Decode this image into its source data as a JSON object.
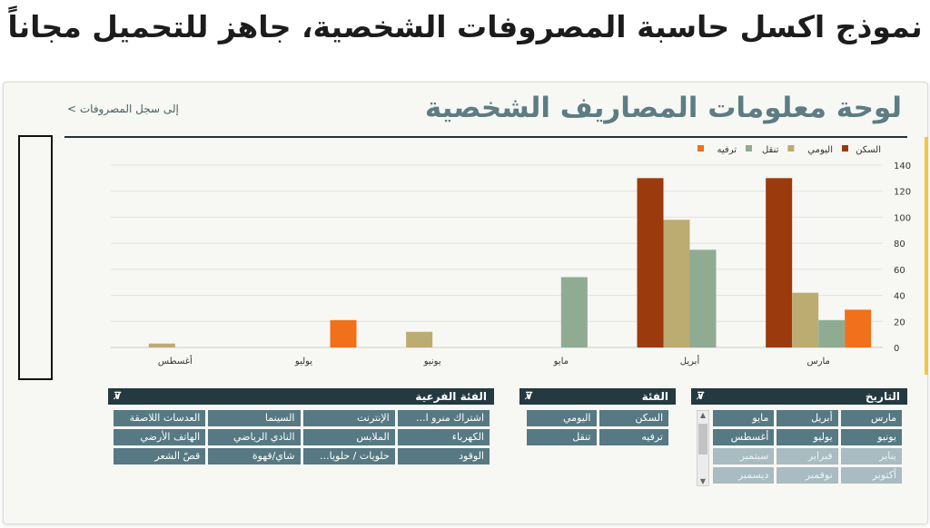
{
  "page_title": "نموذج اكسل حاسبة المصروفات الشخصية، جاهز للتحميل مجاناً",
  "sheet": {
    "title": "لوحة معلومات المصاريف الشخصية",
    "back_link": "إلى سجل المصروفات >"
  },
  "chart_data": {
    "type": "bar",
    "categories": [
      "مارس",
      "أبريل",
      "مايو",
      "يونيو",
      "يوليو",
      "أغسطس"
    ],
    "series": [
      {
        "name": "السكن",
        "color": "#9b3a0c",
        "values": [
          130,
          130,
          0,
          0,
          0,
          0
        ]
      },
      {
        "name": "اليومي",
        "color": "#bdac71",
        "values": [
          42,
          98,
          0,
          12,
          0,
          3
        ]
      },
      {
        "name": "تنقل",
        "color": "#8fac93",
        "values": [
          21,
          75,
          54,
          0,
          0,
          0
        ]
      },
      {
        "name": "ترفيه",
        "color": "#f1701a",
        "values": [
          29,
          0,
          0,
          0,
          21,
          0
        ]
      }
    ],
    "y_ticks": [
      "0",
      "20",
      "40",
      "60",
      "80",
      "100",
      "120",
      "140"
    ],
    "ylim": [
      0,
      140
    ],
    "legend": "top-right",
    "grid": true
  },
  "filters": {
    "date": {
      "header": "التاريخ",
      "items": [
        {
          "label": "مارس",
          "active": true
        },
        {
          "label": "أبريل",
          "active": true
        },
        {
          "label": "مايو",
          "active": true
        },
        {
          "label": "يونيو",
          "active": true
        },
        {
          "label": "يوليو",
          "active": true
        },
        {
          "label": "أغسطس",
          "active": true
        },
        {
          "label": "يناير",
          "active": false
        },
        {
          "label": "فبراير",
          "active": false
        },
        {
          "label": "سبتمبر",
          "active": false
        },
        {
          "label": "أكتوبر",
          "active": false
        },
        {
          "label": "نوفمبر",
          "active": false
        },
        {
          "label": "ديسمبر",
          "active": false
        }
      ]
    },
    "category": {
      "header": "الفئة",
      "items": [
        {
          "label": "السكن",
          "active": true
        },
        {
          "label": "اليومي",
          "active": true
        },
        {
          "label": "ترفيه",
          "active": true
        },
        {
          "label": "تنقل",
          "active": true
        }
      ]
    },
    "subcategory": {
      "header": "الفئة الفرعية",
      "items": [
        {
          "label": "اشتراك منرو ا...",
          "active": true
        },
        {
          "label": "الإنترنت",
          "active": true
        },
        {
          "label": "السينما",
          "active": true
        },
        {
          "label": "العدسات اللاصقة",
          "active": true
        },
        {
          "label": "الكهرباء",
          "active": true
        },
        {
          "label": "الملابس",
          "active": true
        },
        {
          "label": "النادي الرياضي",
          "active": true
        },
        {
          "label": "الهاتف الأرضي",
          "active": true
        },
        {
          "label": "الوقود",
          "active": true
        },
        {
          "label": "حلويات / حلويا...",
          "active": true
        },
        {
          "label": "شاي/قهوة",
          "active": true
        },
        {
          "label": "قصّ الشعر",
          "active": true
        }
      ]
    }
  }
}
